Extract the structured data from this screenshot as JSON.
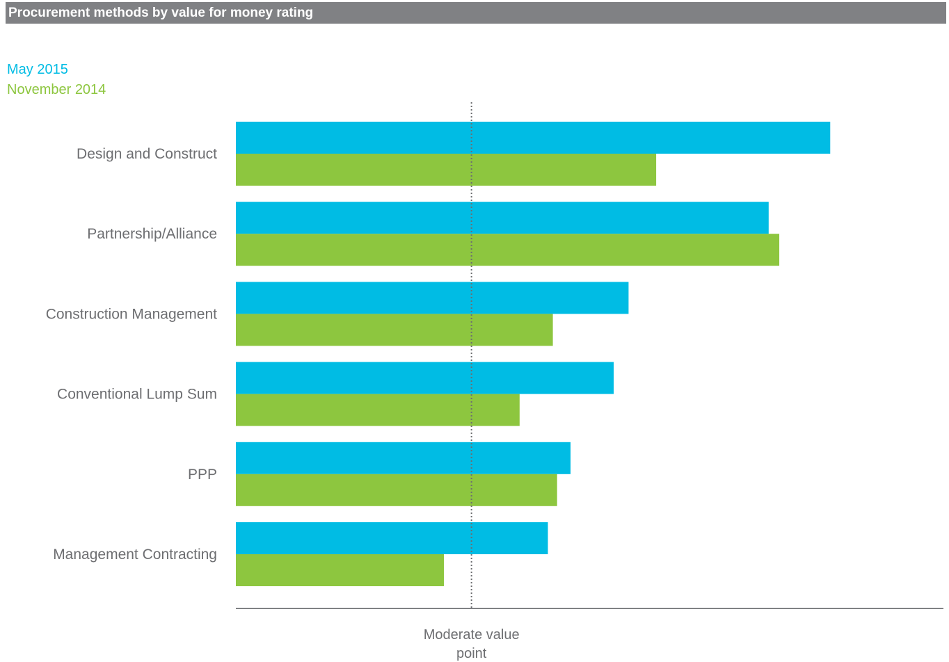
{
  "colors": {
    "title_bg": "#808184",
    "series_may_2015": "#00bce4",
    "series_nov_2014": "#8dc63f",
    "axis": "#808184",
    "text": "#6d6e71"
  },
  "chart_data": {
    "type": "bar",
    "orientation": "horizontal",
    "title": "Procurement methods by value for money rating",
    "categories": [
      "Design and Construct",
      "Partnership/Alliance",
      "Construction Management",
      "Conventional Lump Sum",
      "PPP",
      "Management Contracting"
    ],
    "series": [
      {
        "name": "May 2015",
        "color": "#00bce4",
        "values": [
          84,
          75.3,
          55.5,
          53.4,
          47.3,
          44.1
        ]
      },
      {
        "name": "November 2014",
        "color": "#8dc63f",
        "values": [
          59.4,
          76.8,
          44.8,
          40.1,
          45.4,
          29.4
        ]
      }
    ],
    "xlim": [
      0,
      100
    ],
    "reference_line": {
      "value": 33.3,
      "label_lines": [
        "Moderate value",
        "point"
      ],
      "style": "dotted"
    },
    "legend_position": "top-left",
    "grid": false
  }
}
